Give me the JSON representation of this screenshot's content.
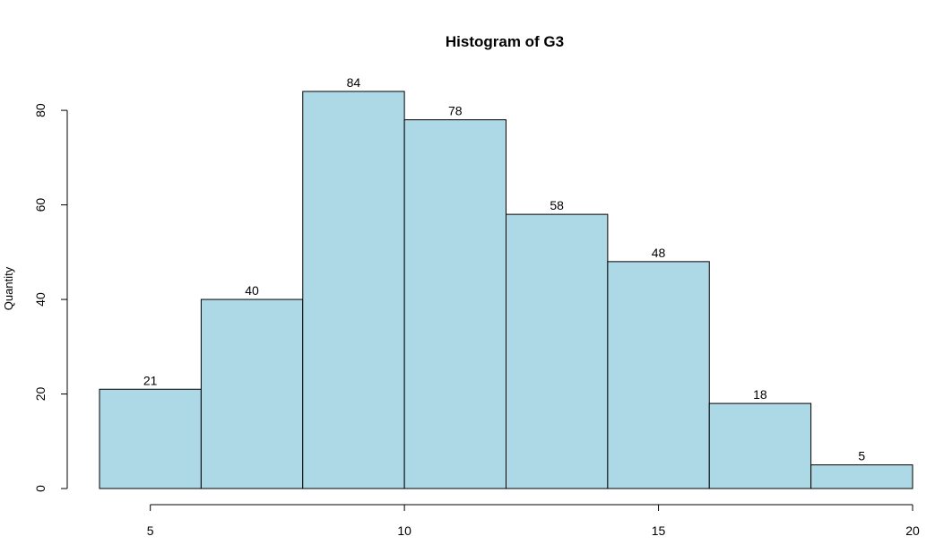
{
  "chart_data": {
    "type": "bar",
    "title": "Histogram of G3",
    "xlabel": "",
    "ylabel": "Quantity",
    "bins": [
      {
        "x0": 4,
        "x1": 6,
        "value": 21
      },
      {
        "x0": 6,
        "x1": 8,
        "value": 40
      },
      {
        "x0": 8,
        "x1": 10,
        "value": 84
      },
      {
        "x0": 10,
        "x1": 12,
        "value": 78
      },
      {
        "x0": 12,
        "x1": 14,
        "value": 58
      },
      {
        "x0": 14,
        "x1": 16,
        "value": 48
      },
      {
        "x0": 16,
        "x1": 18,
        "value": 18
      },
      {
        "x0": 18,
        "x1": 20,
        "value": 5
      }
    ],
    "xlim": [
      4,
      20
    ],
    "ylim": [
      0,
      84
    ],
    "x_ticks": [
      5,
      10,
      15,
      20
    ],
    "y_ticks": [
      0,
      20,
      40,
      60,
      80
    ],
    "bar_color": "#add8e6",
    "grid": false,
    "legend": "none"
  }
}
